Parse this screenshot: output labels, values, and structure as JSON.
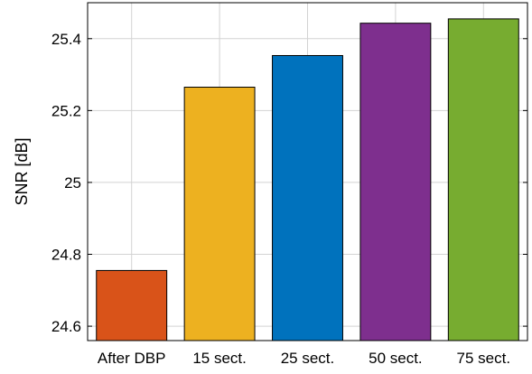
{
  "chart_data": {
    "type": "bar",
    "categories": [
      "After DBP",
      "15 sect.",
      "25 sect.",
      "50 sect.",
      "75 sect."
    ],
    "values": [
      24.755,
      25.265,
      25.353,
      25.443,
      25.455
    ],
    "colors": [
      "#D95319",
      "#EDB120",
      "#0072BD",
      "#7E2F8E",
      "#77AC30"
    ],
    "ylabel": "SNR [dB]",
    "xlabel": "",
    "ylim": [
      24.56,
      25.5
    ],
    "yticks": [
      24.6,
      24.8,
      25,
      25.2,
      25.4
    ],
    "ytick_labels": [
      "24.6",
      "24.8",
      "25",
      "25.2",
      "25.4"
    ],
    "grid": true
  }
}
